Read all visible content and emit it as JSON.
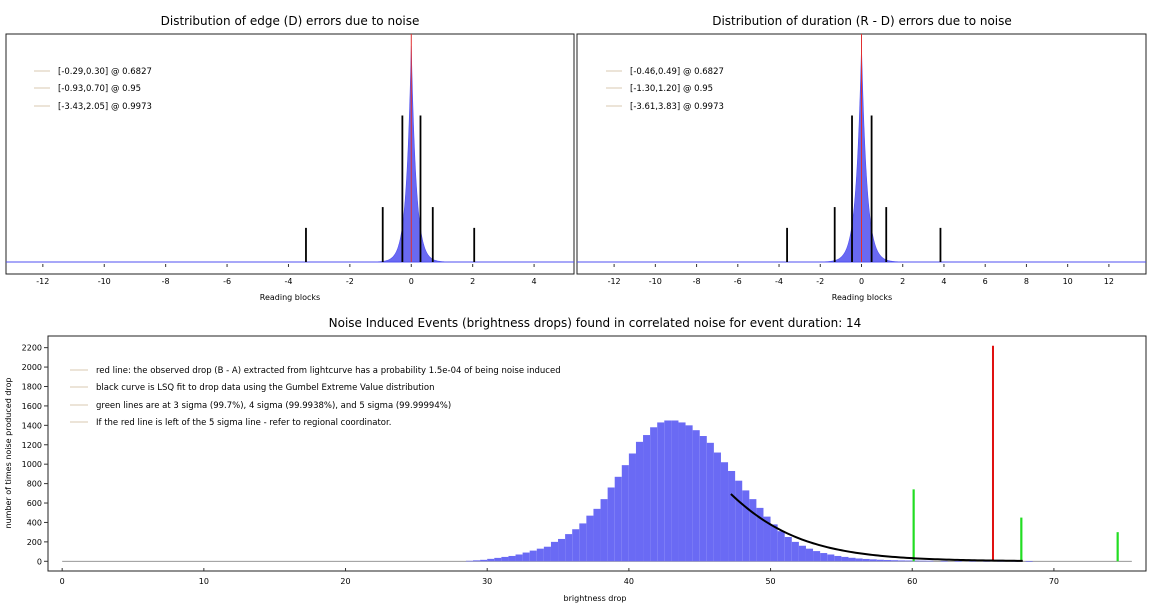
{
  "chart_data": [
    {
      "type": "bar",
      "title": "Distribution of edge (D) errors due to noise",
      "xlabel": "Reading blocks",
      "ylabel": "",
      "xlim": [
        -13.2,
        5.3
      ],
      "x_ticks": [
        -12,
        -10,
        -8,
        -6,
        -4,
        -2,
        0,
        2,
        4
      ],
      "x_tick_labels": [
        "-12",
        "-10",
        "-8",
        "-6",
        "-4",
        "-2",
        "0",
        "2",
        "4"
      ],
      "histogram": {
        "center": 0.0,
        "spread": 0.16,
        "color": "#4f4ff0"
      },
      "observed_line": {
        "x": 0.0,
        "color": "#e03030"
      },
      "intervals": [
        {
          "label": "[-0.29,0.30] @ 0.6827",
          "low": -0.29,
          "high": 0.3,
          "height": 0.68
        },
        {
          "label": "[-0.93,0.70] @ 0.95",
          "low": -0.93,
          "high": 0.7,
          "height": 0.24
        },
        {
          "label": "[-3.43,2.05] @ 0.9973",
          "low": -3.43,
          "high": 2.05,
          "height": 0.14
        }
      ]
    },
    {
      "type": "bar",
      "title": "Distribution of duration (R - D) errors due to noise",
      "xlabel": "Reading blocks",
      "ylabel": "",
      "xlim": [
        -13.8,
        13.8
      ],
      "x_ticks": [
        -12,
        -10,
        -8,
        -6,
        -4,
        -2,
        0,
        2,
        4,
        6,
        8,
        10,
        12
      ],
      "x_tick_labels": [
        "-12",
        "-10",
        "-8",
        "-6",
        "-4",
        "-2",
        "0",
        "2",
        "4",
        "6",
        "8",
        "10",
        "12"
      ],
      "histogram": {
        "center": 0.0,
        "spread": 0.26,
        "color": "#4f4ff0"
      },
      "observed_line": {
        "x": 0.0,
        "color": "#e03030"
      },
      "intervals": [
        {
          "label": "[-0.46,0.49] @ 0.6827",
          "low": -0.46,
          "high": 0.49,
          "height": 0.68
        },
        {
          "label": "[-1.30,1.20] @ 0.95",
          "low": -1.3,
          "high": 1.2,
          "height": 0.24
        },
        {
          "label": "[-3.61,3.83] @ 0.9973",
          "low": -3.61,
          "high": 3.83,
          "height": 0.14
        }
      ]
    },
    {
      "type": "bar",
      "title": "Noise Induced Events (brightness drops) found in correlated noise for event duration: 14",
      "xlabel": "brightness drop",
      "ylabel": "number of times noise produced drop",
      "xlim": [
        -1,
        76.5
      ],
      "ylim": [
        -100,
        2320
      ],
      "x_ticks": [
        0,
        10,
        20,
        30,
        40,
        50,
        60,
        70
      ],
      "x_tick_labels": [
        "0",
        "10",
        "20",
        "30",
        "40",
        "50",
        "60",
        "70"
      ],
      "y_ticks": [
        0,
        200,
        400,
        600,
        800,
        1000,
        1200,
        1400,
        1600,
        1800,
        2000,
        2200
      ],
      "y_tick_labels": [
        "0",
        "200",
        "400",
        "600",
        "800",
        "1000",
        "1200",
        "1400",
        "1600",
        "1800",
        "2000",
        "2200"
      ],
      "histogram_color": "#6a6af4",
      "bins": [
        [
          28.5,
          5
        ],
        [
          29,
          10
        ],
        [
          29.5,
          15
        ],
        [
          30,
          25
        ],
        [
          30.5,
          35
        ],
        [
          31,
          45
        ],
        [
          31.5,
          55
        ],
        [
          32,
          70
        ],
        [
          32.5,
          90
        ],
        [
          33,
          110
        ],
        [
          33.5,
          130
        ],
        [
          34,
          150
        ],
        [
          34.5,
          200
        ],
        [
          35,
          230
        ],
        [
          35.5,
          280
        ],
        [
          36,
          330
        ],
        [
          36.5,
          390
        ],
        [
          37,
          470
        ],
        [
          37.5,
          540
        ],
        [
          38,
          640
        ],
        [
          38.5,
          760
        ],
        [
          39,
          870
        ],
        [
          39.5,
          990
        ],
        [
          40,
          1110
        ],
        [
          40.5,
          1230
        ],
        [
          41,
          1300
        ],
        [
          41.5,
          1380
        ],
        [
          42,
          1430
        ],
        [
          42.5,
          1450
        ],
        [
          43,
          1450
        ],
        [
          43.5,
          1430
        ],
        [
          44,
          1400
        ],
        [
          44.5,
          1350
        ],
        [
          45,
          1290
        ],
        [
          45.5,
          1220
        ],
        [
          46,
          1120
        ],
        [
          46.5,
          1020
        ],
        [
          47,
          930
        ],
        [
          47.5,
          830
        ],
        [
          48,
          730
        ],
        [
          48.5,
          640
        ],
        [
          49,
          550
        ],
        [
          49.5,
          460
        ],
        [
          50,
          380
        ],
        [
          50.5,
          310
        ],
        [
          51,
          250
        ],
        [
          51.5,
          200
        ],
        [
          52,
          160
        ],
        [
          52.5,
          130
        ],
        [
          53,
          105
        ],
        [
          53.5,
          85
        ],
        [
          54,
          70
        ],
        [
          54.5,
          55
        ],
        [
          55,
          45
        ],
        [
          55.5,
          36
        ],
        [
          56,
          29
        ],
        [
          56.5,
          24
        ],
        [
          57,
          20
        ],
        [
          57.5,
          16
        ],
        [
          58,
          13
        ],
        [
          58.5,
          11
        ],
        [
          59,
          9
        ],
        [
          59.5,
          8
        ],
        [
          60,
          7
        ],
        [
          60.5,
          6
        ],
        [
          61,
          5
        ],
        [
          62,
          4
        ],
        [
          63,
          3
        ],
        [
          64,
          3
        ],
        [
          65,
          2
        ],
        [
          66,
          2
        ],
        [
          67,
          2
        ],
        [
          68,
          1
        ]
      ],
      "gumbel_fit": {
        "color": "#000000",
        "x_start": 47.2,
        "x_end": 68.0,
        "mu": 41.3,
        "beta": 3.9,
        "scale": 15300
      },
      "observed_drop_line": {
        "x": 65.7,
        "height": 2220,
        "color": "#e01010"
      },
      "sigma_lines": [
        {
          "x": 60.1,
          "height": 740,
          "color": "#22dd22"
        },
        {
          "x": 67.7,
          "height": 450,
          "color": "#22dd22"
        },
        {
          "x": 74.5,
          "height": 300,
          "color": "#22dd22"
        }
      ],
      "legend": [
        "red line: the observed drop (B - A) extracted from lightcurve has a probability 1.5e-04 of being noise induced",
        "black curve is LSQ fit to drop data using the Gumbel Extreme Value distribution",
        "green lines are at 3 sigma (99.7%), 4 sigma (99.9938%), and 5 sigma (99.99994%)",
        "If the red line is left of the 5 sigma line - refer to regional coordinator."
      ]
    }
  ]
}
